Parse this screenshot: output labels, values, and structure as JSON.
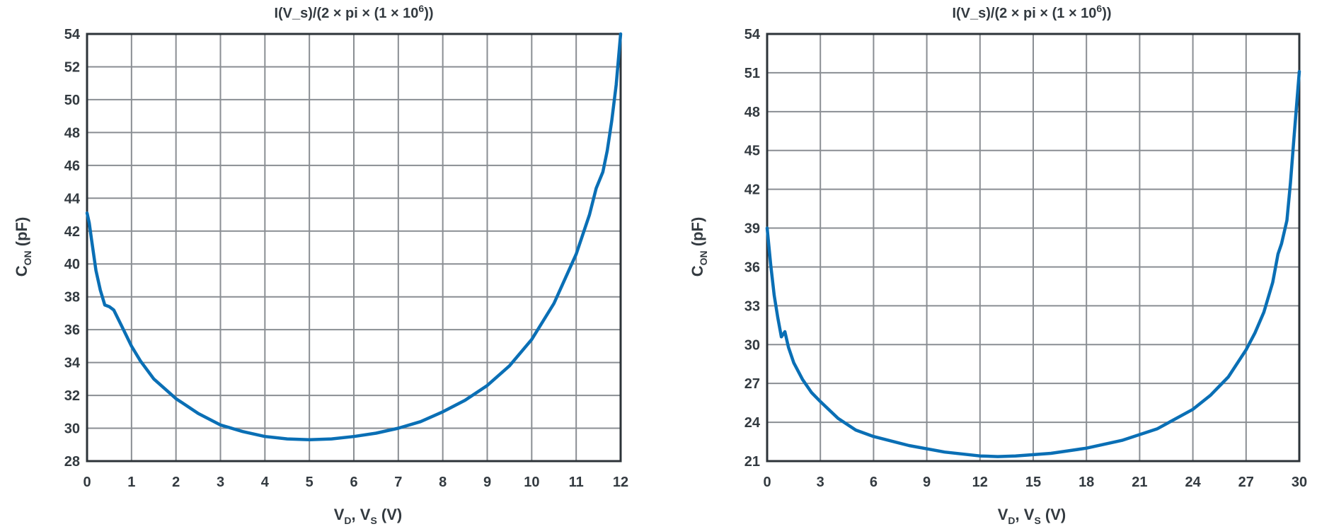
{
  "colors": {
    "line": "#0a6fb5",
    "grid": "#8a8e93",
    "frame": "#2c3338",
    "text": "#333a40"
  },
  "chart_data": [
    {
      "type": "line",
      "title": "I(V_s)/(2 × pi × (1 × 10",
      "title_sup": "6",
      "title_end": "))",
      "ylabel_main": "C",
      "ylabel_sub": "ON",
      "ylabel_end": " (pF)",
      "xlabel_a": "V",
      "xlabel_a_sub": "D",
      "xlabel_b": ", V",
      "xlabel_b_sub": "S",
      "xlabel_end": " (V)",
      "xlim": [
        0,
        12
      ],
      "ylim": [
        28,
        54
      ],
      "xticks": [
        0,
        1,
        2,
        3,
        4,
        5,
        6,
        7,
        8,
        9,
        10,
        11,
        12
      ],
      "yticks": [
        28,
        30,
        32,
        34,
        36,
        38,
        40,
        42,
        44,
        46,
        48,
        50,
        52,
        54
      ],
      "grid": true,
      "series": [
        {
          "x": [
            0,
            0.05,
            0.1,
            0.2,
            0.3,
            0.4,
            0.5,
            0.6,
            0.8,
            1.0,
            1.2,
            1.5,
            2.0,
            2.5,
            3.0,
            3.5,
            4.0,
            4.5,
            5.0,
            5.5,
            6.0,
            6.5,
            7.0,
            7.5,
            8.0,
            8.5,
            9.0,
            9.5,
            10.0,
            10.5,
            11.0,
            11.3,
            11.45,
            11.6,
            11.7,
            11.8,
            11.9,
            12.0
          ],
          "y": [
            43.1,
            42.5,
            41.5,
            39.6,
            38.4,
            37.5,
            37.4,
            37.2,
            36.1,
            35.0,
            34.1,
            33.0,
            31.8,
            30.9,
            30.2,
            29.8,
            29.5,
            29.35,
            29.3,
            29.35,
            29.5,
            29.7,
            30.0,
            30.4,
            31.0,
            31.7,
            32.6,
            33.8,
            35.4,
            37.6,
            40.6,
            43.0,
            44.6,
            45.6,
            46.9,
            48.7,
            50.9,
            54.0
          ]
        }
      ]
    },
    {
      "type": "line",
      "title": "I(V_s)/(2 × pi × (1 × 10",
      "title_sup": "6",
      "title_end": "))",
      "ylabel_main": "C",
      "ylabel_sub": "ON",
      "ylabel_end": " (pF)",
      "xlabel_a": "V",
      "xlabel_a_sub": "D",
      "xlabel_b": ", V",
      "xlabel_b_sub": "S",
      "xlabel_end": " (V)",
      "xlim": [
        0,
        30
      ],
      "ylim": [
        21,
        54
      ],
      "xticks": [
        0,
        3,
        6,
        9,
        12,
        15,
        18,
        21,
        24,
        27,
        30
      ],
      "yticks": [
        21,
        24,
        27,
        30,
        33,
        36,
        39,
        42,
        45,
        48,
        51,
        54
      ],
      "grid": true,
      "series": [
        {
          "x": [
            0,
            0.2,
            0.4,
            0.6,
            0.8,
            1.0,
            1.2,
            1.5,
            2.0,
            2.5,
            3.0,
            4.0,
            5.0,
            6.0,
            8.0,
            10.0,
            12.0,
            13.0,
            14.0,
            16.0,
            18.0,
            20.0,
            22.0,
            24.0,
            25.0,
            26.0,
            27.0,
            27.5,
            28.0,
            28.5,
            28.8,
            29.0,
            29.3,
            29.5,
            29.7,
            30.0
          ],
          "y": [
            39.0,
            36.2,
            33.8,
            32.1,
            30.6,
            31.0,
            29.8,
            28.6,
            27.3,
            26.3,
            25.6,
            24.3,
            23.4,
            22.9,
            22.2,
            21.7,
            21.4,
            21.35,
            21.4,
            21.6,
            22.0,
            22.6,
            23.5,
            25.0,
            26.1,
            27.5,
            29.6,
            30.9,
            32.5,
            34.8,
            37.0,
            37.8,
            39.6,
            42.5,
            46.0,
            51.1
          ]
        }
      ]
    }
  ]
}
